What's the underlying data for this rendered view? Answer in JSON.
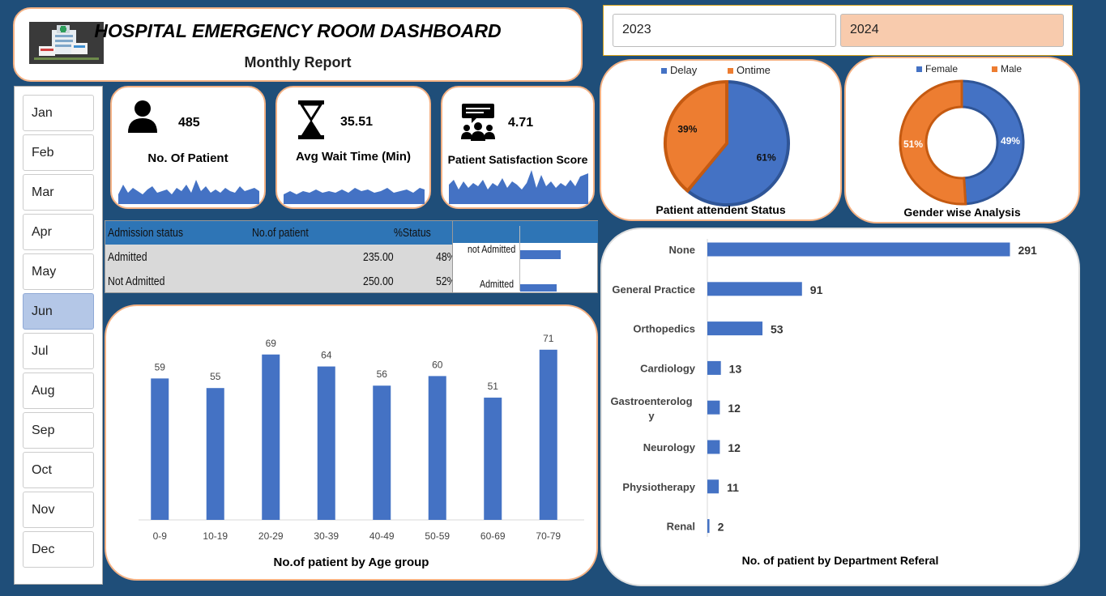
{
  "header": {
    "title": "HOSPITAL EMERGENCY ROOM DASHBOARD",
    "subtitle": "Monthly Report"
  },
  "years": {
    "options": [
      "2023",
      "2024"
    ],
    "selected": "2024"
  },
  "months": {
    "options": [
      "Jan",
      "Feb",
      "Mar",
      "Apr",
      "May",
      "Jun",
      "Jul",
      "Aug",
      "Sep",
      "Oct",
      "Nov",
      "Dec"
    ],
    "selected": "Jun"
  },
  "kpis": [
    {
      "icon": "person-icon",
      "value": "485",
      "label": "No. Of Patient"
    },
    {
      "icon": "hourglass-icon",
      "value": "35.51",
      "label": "Avg Wait Time (Min)"
    },
    {
      "icon": "feedback-group-icon",
      "value": "4.71",
      "label": "Patient Satisfaction Score"
    }
  ],
  "admission": {
    "headers": [
      "Admission status",
      "No.of patient",
      "%Status"
    ],
    "rows": [
      {
        "status": "Admitted",
        "count": "235.00",
        "pct": "48%"
      },
      {
        "status": "Not Admitted",
        "count": "250.00",
        "pct": "52%"
      }
    ],
    "mini_chart": {
      "labels": [
        "not Admitted",
        "Admitted"
      ],
      "values": [
        250,
        235
      ]
    }
  },
  "colors": {
    "blue": "#4472c4",
    "orange": "#ed7d31",
    "card_border": "#f4b183",
    "background": "#1f4e79"
  },
  "chart_data": [
    {
      "type": "pie",
      "title": "Patient attendent Status",
      "categories": [
        "Delay",
        "Ontime"
      ],
      "values": [
        61,
        39
      ],
      "labels": [
        "61%",
        "39%"
      ],
      "legend": "top"
    },
    {
      "type": "pie",
      "subtype": "doughnut",
      "title": "Gender wise Analysis",
      "categories": [
        "Female",
        "Male"
      ],
      "values": [
        49,
        51
      ],
      "labels": [
        "49%",
        "51%"
      ],
      "legend": "top"
    },
    {
      "type": "bar",
      "title": "No.of patient by Age group",
      "categories": [
        "0-9",
        "10-19",
        "20-29",
        "30-39",
        "40-49",
        "50-59",
        "60-69",
        "70-79"
      ],
      "values": [
        59,
        55,
        69,
        64,
        56,
        60,
        51,
        71
      ],
      "ylim": [
        0,
        75
      ]
    },
    {
      "type": "bar",
      "orientation": "horizontal",
      "title": "No. of patient by Department Referal",
      "categories": [
        "None",
        "General Practice",
        "Orthopedics",
        "Cardiology",
        "Gastroenterolog y",
        "Neurology",
        "Physiotherapy",
        "Renal"
      ],
      "values": [
        291,
        91,
        53,
        13,
        12,
        12,
        11,
        2
      ],
      "xlim": [
        0,
        300
      ]
    }
  ]
}
